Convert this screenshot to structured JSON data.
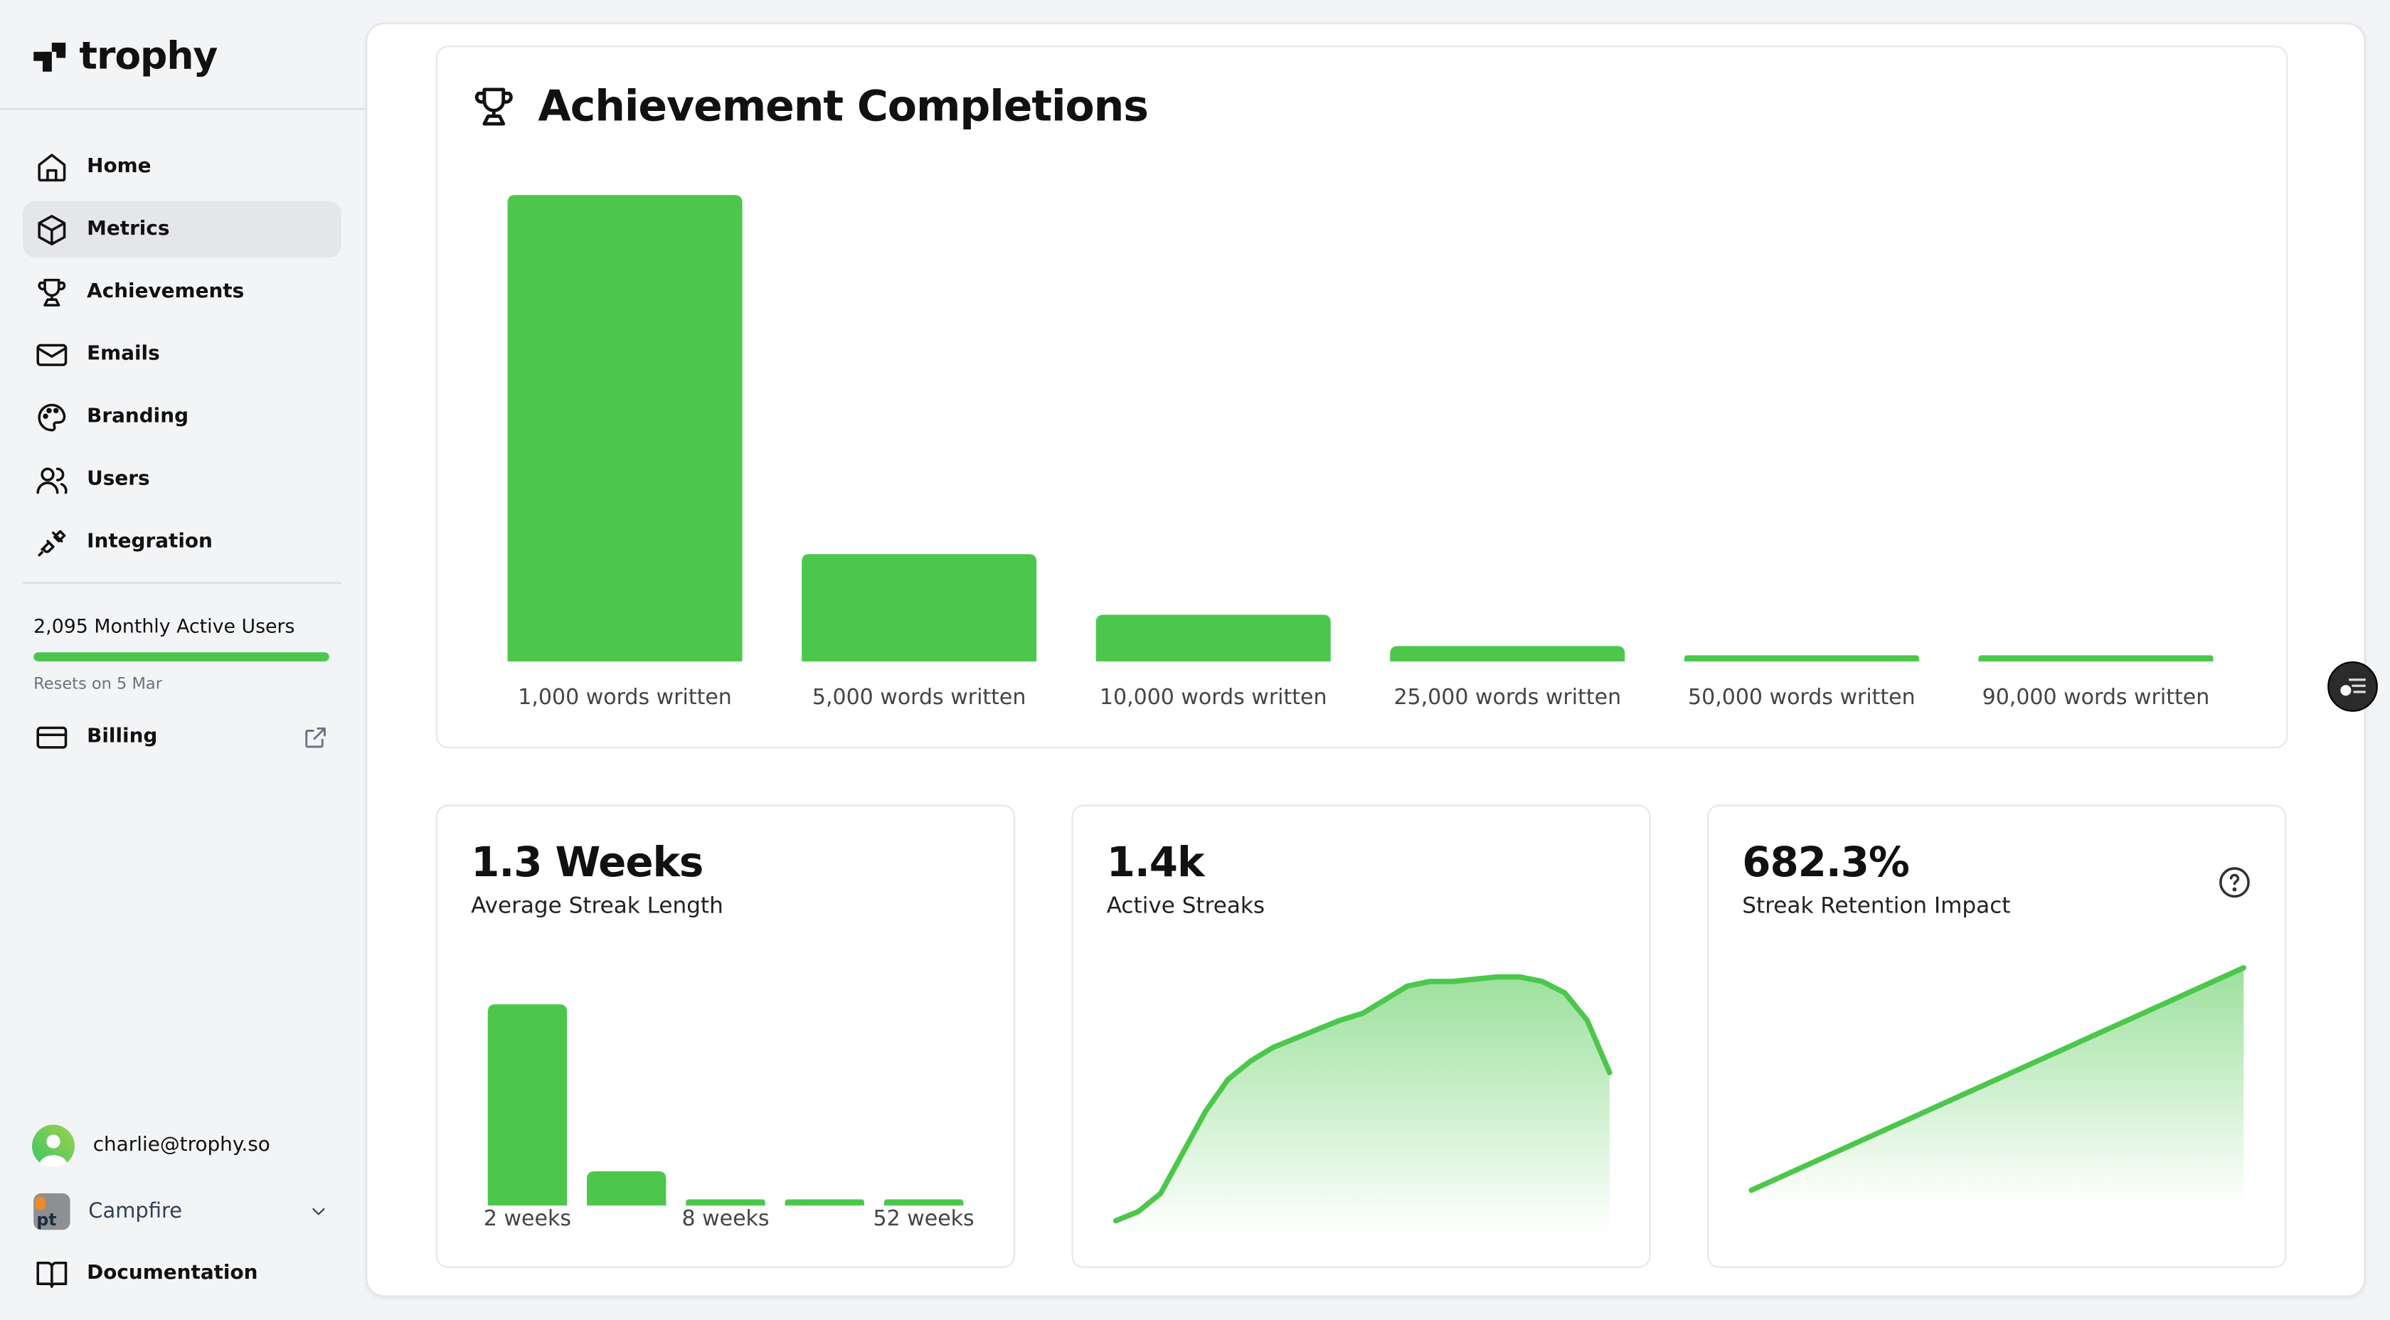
{
  "brand": {
    "name": "trophy"
  },
  "sidebar": {
    "items": [
      {
        "label": "Home",
        "icon": "home-icon"
      },
      {
        "label": "Metrics",
        "icon": "cube-icon",
        "active": true
      },
      {
        "label": "Achievements",
        "icon": "trophy-icon"
      },
      {
        "label": "Emails",
        "icon": "mail-icon"
      },
      {
        "label": "Branding",
        "icon": "palette-icon"
      },
      {
        "label": "Users",
        "icon": "users-icon"
      },
      {
        "label": "Integration",
        "icon": "plug-icon"
      }
    ],
    "usage": {
      "label": "2,095 Monthly Active Users",
      "progress_percent": 100,
      "reset": "Resets on 5 Mar"
    },
    "billing": {
      "label": "Billing",
      "icon": "external-link-icon"
    },
    "user": {
      "email": "charlie@trophy.so"
    },
    "workspace": {
      "name": "Campfire"
    },
    "docs": {
      "label": "Documentation"
    }
  },
  "colors": {
    "accent": "#4cc74c"
  },
  "chart_data": [
    {
      "type": "bar",
      "title": "Achievement Completions",
      "categories": [
        "1,000 words written",
        "5,000 words written",
        "10,000 words written",
        "25,000 words written",
        "50,000 words written",
        "90,000 words written"
      ],
      "values": [
        100,
        23,
        10,
        3.3,
        1.3,
        1.3
      ],
      "ylim": [
        0,
        100
      ],
      "grid": false
    },
    {
      "type": "bar",
      "title": "1.3 Weeks",
      "subtitle": "Average Streak Length",
      "categories": [
        "2 weeks",
        "",
        "8 weeks",
        "",
        "52 weeks"
      ],
      "values": [
        100,
        17,
        3,
        3,
        3
      ],
      "ylim": [
        0,
        100
      ],
      "grid": false
    },
    {
      "type": "area",
      "title": "1.4k",
      "subtitle": "Active Streaks",
      "values": [
        0,
        4,
        12,
        30,
        48,
        62,
        70,
        76,
        80,
        84,
        88,
        91,
        97,
        103,
        105,
        105,
        106,
        107,
        107,
        105,
        100,
        88,
        65
      ],
      "grid": false
    },
    {
      "type": "area",
      "title": "682.3%",
      "subtitle": "Streak Retention Impact",
      "values": [
        0,
        100
      ],
      "grid": false
    }
  ]
}
